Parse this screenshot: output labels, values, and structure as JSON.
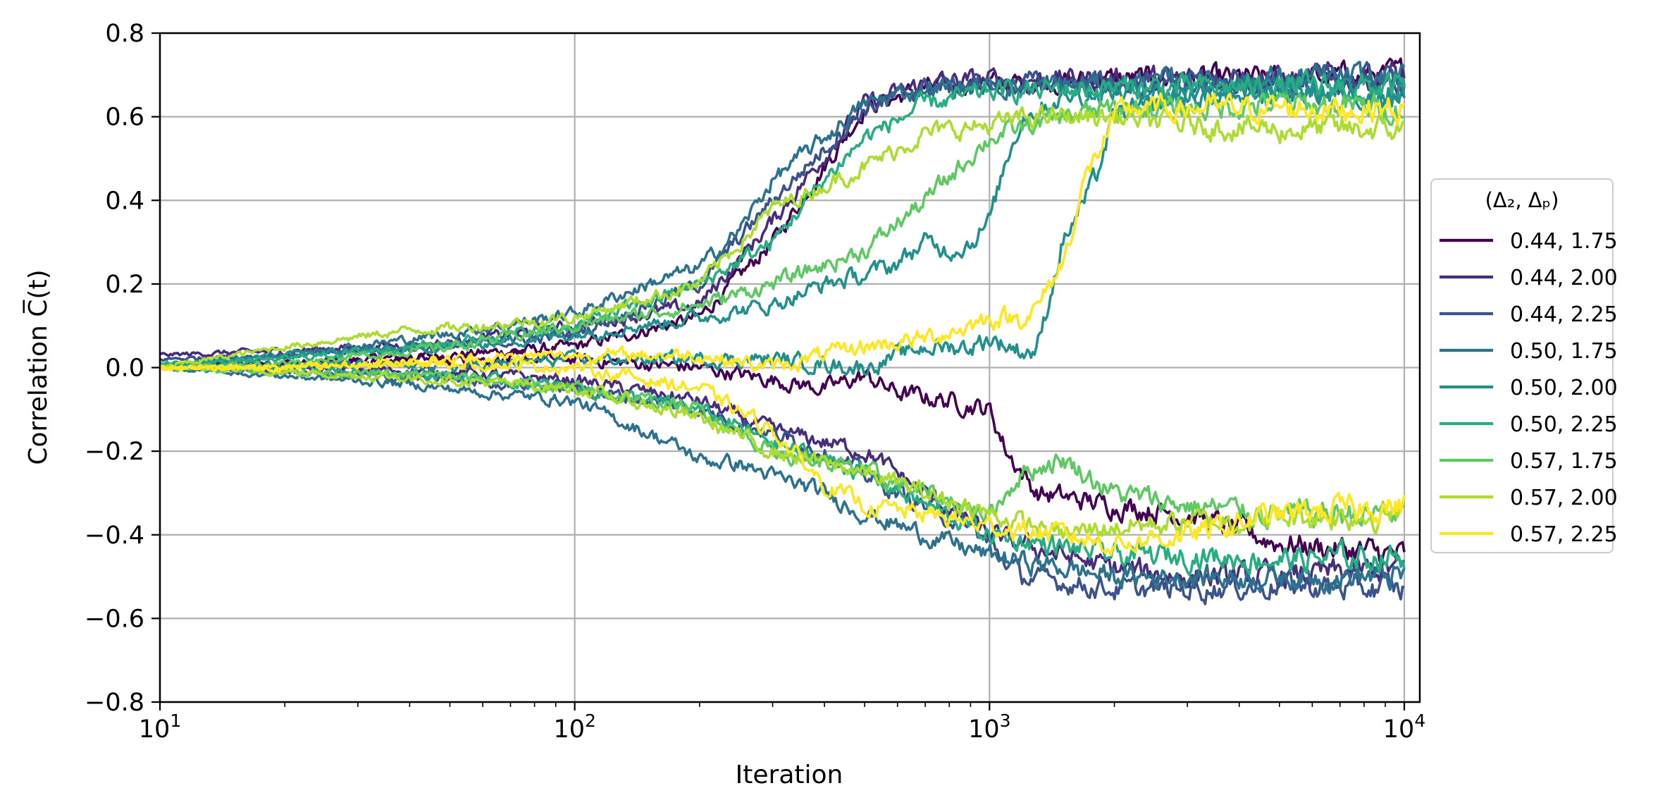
{
  "chart_data": {
    "type": "line",
    "x_scale": "log",
    "xlim": [
      10,
      10000
    ],
    "ylim": [
      -0.8,
      0.8
    ],
    "xlabel": "Iteration",
    "ylabel": "Correlation C̅(t)",
    "x_ticks": [
      10,
      100,
      1000,
      10000
    ],
    "x_tick_labels": [
      {
        "base": "10",
        "exp": "1"
      },
      {
        "base": "10",
        "exp": "2"
      },
      {
        "base": "10",
        "exp": "3"
      },
      {
        "base": "10",
        "exp": "4"
      }
    ],
    "y_ticks": [
      -0.8,
      -0.6,
      -0.4,
      -0.2,
      0.0,
      0.2,
      0.4,
      0.6,
      0.8
    ],
    "y_tick_labels": [
      "−0.8",
      "−0.6",
      "−0.4",
      "−0.2",
      "0.0",
      "0.2",
      "0.4",
      "0.6",
      "0.8"
    ],
    "grid": true,
    "legend": {
      "title": "(Δ₂, Δₚ)",
      "placement": "right outside"
    },
    "series": [
      {
        "name": "0.44, 1.75",
        "color": "#440154",
        "runs": [
          {
            "x": [
              10,
              20,
              50,
              100,
              200,
              300,
              500,
              700,
              900,
              1200,
              2000,
              5000,
              10000
            ],
            "y": [
              0.0,
              0.01,
              0.03,
              0.05,
              0.12,
              0.3,
              0.62,
              0.67,
              0.68,
              0.68,
              0.69,
              0.69,
              0.7
            ]
          },
          {
            "x": [
              10,
              20,
              50,
              100,
              200,
              400,
              500,
              600,
              800,
              1000,
              1100,
              1300,
              2000,
              3000,
              5000,
              10000
            ],
            "y": [
              0.01,
              0.01,
              0.02,
              0.02,
              0.0,
              -0.05,
              -0.02,
              -0.06,
              -0.08,
              -0.1,
              -0.2,
              -0.3,
              -0.33,
              -0.35,
              -0.42,
              -0.45
            ]
          }
        ]
      },
      {
        "name": "0.44, 2.00",
        "color": "#472d7b",
        "runs": [
          {
            "x": [
              10,
              20,
              50,
              100,
              200,
              300,
              500,
              700,
              1000,
              2000,
              5000,
              10000
            ],
            "y": [
              0.03,
              0.04,
              0.06,
              0.1,
              0.15,
              0.35,
              0.63,
              0.68,
              0.69,
              0.69,
              0.69,
              0.7
            ]
          },
          {
            "x": [
              10,
              20,
              50,
              100,
              200,
              300,
              500,
              700,
              1000,
              1500,
              2000,
              3000,
              5000,
              10000
            ],
            "y": [
              0.0,
              0.0,
              -0.01,
              -0.03,
              -0.08,
              -0.15,
              -0.2,
              -0.3,
              -0.4,
              -0.45,
              -0.48,
              -0.5,
              -0.5,
              -0.48
            ]
          }
        ]
      },
      {
        "name": "0.44, 2.25",
        "color": "#3b528b",
        "runs": [
          {
            "x": [
              10,
              20,
              50,
              100,
              200,
              300,
              500,
              700,
              1000,
              2000,
              5000,
              10000
            ],
            "y": [
              0.02,
              0.03,
              0.05,
              0.08,
              0.2,
              0.4,
              0.62,
              0.67,
              0.68,
              0.68,
              0.68,
              0.69
            ]
          },
          {
            "x": [
              10,
              20,
              50,
              100,
              200,
              400,
              600,
              900,
              1200,
              2000,
              3000,
              5000,
              10000
            ],
            "y": [
              0.0,
              -0.01,
              -0.03,
              -0.05,
              -0.1,
              -0.2,
              -0.3,
              -0.38,
              -0.5,
              -0.53,
              -0.53,
              -0.52,
              -0.53
            ]
          }
        ]
      },
      {
        "name": "0.50, 1.75",
        "color": "#2c728e",
        "runs": [
          {
            "x": [
              10,
              20,
              50,
              100,
              150,
              200,
              250,
              300,
              400,
              500,
              700,
              1000,
              2000,
              5000,
              10000
            ],
            "y": [
              0.0,
              0.03,
              0.08,
              0.13,
              0.2,
              0.24,
              0.33,
              0.45,
              0.55,
              0.63,
              0.67,
              0.67,
              0.68,
              0.69,
              0.69
            ]
          },
          {
            "x": [
              10,
              20,
              40,
              60,
              80,
              100,
              130,
              170,
              200,
              250,
              300,
              400,
              500,
              700,
              1000,
              2000,
              3000,
              5000,
              10000
            ],
            "y": [
              0.0,
              -0.02,
              -0.04,
              -0.06,
              -0.07,
              -0.08,
              -0.13,
              -0.18,
              -0.22,
              -0.23,
              -0.26,
              -0.3,
              -0.35,
              -0.4,
              -0.45,
              -0.5,
              -0.5,
              -0.5,
              -0.5
            ]
          }
        ]
      },
      {
        "name": "0.50, 2.00",
        "color": "#21908d",
        "runs": [
          {
            "x": [
              10,
              20,
              50,
              100,
              200,
              300,
              500,
              700,
              900,
              1000,
              1200,
              1300,
              1500,
              1800,
              2000,
              3000,
              5000,
              10000
            ],
            "y": [
              0.0,
              0.01,
              0.0,
              0.02,
              0.02,
              0.02,
              0.0,
              0.05,
              0.05,
              0.07,
              0.04,
              0.04,
              0.3,
              0.45,
              0.6,
              0.65,
              0.66,
              0.66
            ]
          },
          {
            "x": [
              10,
              20,
              50,
              100,
              200,
              300,
              400,
              500,
              600,
              700,
              800,
              900,
              1000,
              1100,
              1200,
              1500,
              2000,
              5000,
              10000
            ],
            "y": [
              0.0,
              0.03,
              0.05,
              0.08,
              0.12,
              0.15,
              0.2,
              0.22,
              0.25,
              0.3,
              0.28,
              0.3,
              0.35,
              0.5,
              0.6,
              0.65,
              0.66,
              0.66,
              0.66
            ]
          }
        ]
      },
      {
        "name": "0.50, 2.25",
        "color": "#27ad81",
        "runs": [
          {
            "x": [
              10,
              20,
              50,
              100,
              200,
              300,
              400,
              500,
              700,
              1000,
              2000,
              5000,
              10000
            ],
            "y": [
              0.01,
              0.02,
              0.06,
              0.1,
              0.2,
              0.3,
              0.45,
              0.55,
              0.63,
              0.66,
              0.67,
              0.67,
              0.67
            ]
          },
          {
            "x": [
              10,
              20,
              50,
              100,
              200,
              300,
              500,
              700,
              1000,
              1500,
              2000,
              3000,
              5000,
              10000
            ],
            "y": [
              0.0,
              0.0,
              -0.02,
              -0.05,
              -0.1,
              -0.18,
              -0.25,
              -0.33,
              -0.4,
              -0.43,
              -0.45,
              -0.45,
              -0.46,
              -0.45
            ]
          }
        ]
      },
      {
        "name": "0.57, 1.75",
        "color": "#5ec962",
        "runs": [
          {
            "x": [
              10,
              20,
              50,
              100,
              200,
              300,
              500,
              700,
              1000,
              1500,
              2000,
              3000,
              5000,
              10000
            ],
            "y": [
              0.0,
              0.01,
              0.05,
              0.1,
              0.15,
              0.2,
              0.28,
              0.4,
              0.55,
              0.6,
              0.62,
              0.62,
              0.63,
              0.62
            ]
          },
          {
            "x": [
              10,
              20,
              50,
              100,
              200,
              300,
              500,
              700,
              1000,
              1200,
              1500,
              2000,
              3000,
              5000,
              10000
            ],
            "y": [
              0.0,
              -0.01,
              -0.02,
              -0.05,
              -0.1,
              -0.2,
              -0.25,
              -0.3,
              -0.35,
              -0.25,
              -0.22,
              -0.3,
              -0.33,
              -0.35,
              -0.35
            ]
          }
        ]
      },
      {
        "name": "0.57, 2.00",
        "color": "#addc30",
        "runs": [
          {
            "x": [
              10,
              20,
              40,
              60,
              100,
              200,
              300,
              500,
              700,
              1000,
              1300,
              2000,
              3000,
              5000,
              10000
            ],
            "y": [
              0.0,
              0.05,
              0.09,
              0.1,
              0.12,
              0.2,
              0.38,
              0.48,
              0.56,
              0.58,
              0.6,
              0.6,
              0.58,
              0.57,
              0.57
            ]
          },
          {
            "x": [
              10,
              20,
              50,
              100,
              200,
              300,
              500,
              700,
              1000,
              1500,
              2000,
              3000,
              5000,
              10000
            ],
            "y": [
              0.0,
              -0.01,
              -0.03,
              -0.05,
              -0.12,
              -0.2,
              -0.25,
              -0.3,
              -0.35,
              -0.4,
              -0.38,
              -0.37,
              -0.36,
              -0.35
            ]
          }
        ]
      },
      {
        "name": "0.57, 2.25",
        "color": "#fde725",
        "runs": [
          {
            "x": [
              10,
              20,
              50,
              100,
              200,
              300,
              400,
              500,
              700,
              900,
              1000,
              1200,
              1300,
              1500,
              1700,
              1900,
              2100,
              3000,
              5000,
              10000
            ],
            "y": [
              0.0,
              0.0,
              0.02,
              0.03,
              0.03,
              0.0,
              0.03,
              0.05,
              0.07,
              0.1,
              0.12,
              0.12,
              0.14,
              0.25,
              0.45,
              0.55,
              0.62,
              0.62,
              0.62,
              0.62
            ]
          },
          {
            "x": [
              10,
              20,
              50,
              100,
              200,
              300,
              400,
              500,
              700,
              1000,
              1500,
              2000,
              3000,
              5000,
              10000
            ],
            "y": [
              0.0,
              0.0,
              0.01,
              0.0,
              -0.05,
              -0.15,
              -0.28,
              -0.33,
              -0.35,
              -0.38,
              -0.4,
              -0.42,
              -0.4,
              -0.35,
              -0.33
            ]
          }
        ]
      }
    ]
  }
}
